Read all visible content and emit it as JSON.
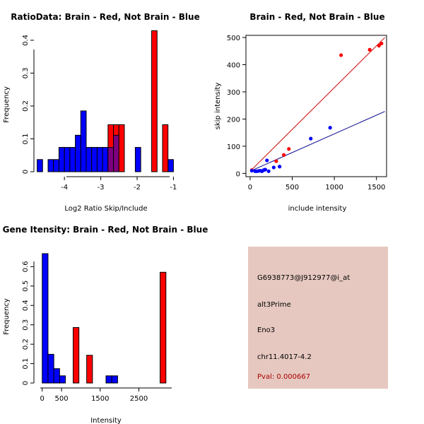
{
  "colors": {
    "red": "#ff0000",
    "blue": "#0000ff",
    "overlap": "#7f007f",
    "red_line": "#cc0000",
    "blue_line": "#00008b",
    "panel_bg": "#e6c8c0",
    "pval": "#aa0000"
  },
  "chart_data": [
    {
      "type": "bar",
      "title": "RatioData: Brain - Red, Not Brain - Blue",
      "xlabel": "Log2 Ratio Skip/Include",
      "ylabel": "Frequency",
      "xlim": [
        -4.8,
        -0.95
      ],
      "ylim": [
        0,
        0.43
      ],
      "xticks": [
        -4,
        -3,
        -2,
        -1
      ],
      "yticks": [
        0,
        0.1,
        0.2,
        0.3,
        0.4
      ],
      "series": [
        {
          "name": "Not Brain",
          "color": "blue",
          "bins": [
            {
              "x0": -4.75,
              "x1": -4.6,
              "y": 0.037
            },
            {
              "x0": -4.45,
              "x1": -4.3,
              "y": 0.037
            },
            {
              "x0": -4.3,
              "x1": -4.15,
              "y": 0.037
            },
            {
              "x0": -4.15,
              "x1": -4.0,
              "y": 0.074
            },
            {
              "x0": -4.0,
              "x1": -3.85,
              "y": 0.074
            },
            {
              "x0": -3.85,
              "x1": -3.7,
              "y": 0.074
            },
            {
              "x0": -3.7,
              "x1": -3.55,
              "y": 0.111
            },
            {
              "x0": -3.55,
              "x1": -3.4,
              "y": 0.185
            },
            {
              "x0": -3.4,
              "x1": -3.25,
              "y": 0.074
            },
            {
              "x0": -3.25,
              "x1": -3.1,
              "y": 0.074
            },
            {
              "x0": -3.1,
              "x1": -2.95,
              "y": 0.074
            },
            {
              "x0": -2.95,
              "x1": -2.8,
              "y": 0.074
            },
            {
              "x0": -2.8,
              "x1": -2.65,
              "y": 0.074
            },
            {
              "x0": -2.65,
              "x1": -2.5,
              "y": 0.111
            },
            {
              "x0": -2.05,
              "x1": -1.9,
              "y": 0.074
            },
            {
              "x0": -1.15,
              "x1": -1.0,
              "y": 0.037
            }
          ]
        },
        {
          "name": "Brain",
          "color": "red",
          "bins": [
            {
              "x0": -2.8,
              "x1": -2.65,
              "y": 0.143
            },
            {
              "x0": -2.65,
              "x1": -2.5,
              "y": 0.143
            },
            {
              "x0": -2.5,
              "x1": -2.35,
              "y": 0.143
            },
            {
              "x0": -1.6,
              "x1": -1.45,
              "y": 0.429
            },
            {
              "x0": -1.3,
              "x1": -1.15,
              "y": 0.143
            }
          ]
        }
      ]
    },
    {
      "type": "scatter",
      "title": "Brain - Red, Not Brain - Blue",
      "xlabel": "include intensity",
      "ylabel": "skip intensity",
      "xlim": [
        -50,
        1620
      ],
      "ylim": [
        -12,
        508
      ],
      "xticks": [
        0,
        500,
        1000,
        1500
      ],
      "yticks": [
        0,
        100,
        200,
        300,
        400,
        500
      ],
      "series": [
        {
          "name": "Brain",
          "color": "red",
          "points": [
            [
              20,
              12
            ],
            [
              310,
              45
            ],
            [
              400,
              68
            ],
            [
              460,
              90
            ],
            [
              1080,
              435
            ],
            [
              1420,
              455
            ],
            [
              1530,
              470
            ],
            [
              1560,
              478
            ]
          ],
          "fit_line": [
            [
              0,
              8
            ],
            [
              1600,
              500
            ]
          ]
        },
        {
          "name": "Not Brain",
          "color": "blue",
          "points": [
            [
              20,
              10
            ],
            [
              60,
              8
            ],
            [
              80,
              8
            ],
            [
              100,
              9
            ],
            [
              120,
              10
            ],
            [
              140,
              8
            ],
            [
              160,
              12
            ],
            [
              180,
              14
            ],
            [
              200,
              48
            ],
            [
              220,
              8
            ],
            [
              280,
              22
            ],
            [
              350,
              25
            ],
            [
              720,
              128
            ],
            [
              950,
              168
            ]
          ],
          "fit_line": [
            [
              0,
              8
            ],
            [
              1600,
              228
            ]
          ]
        }
      ]
    },
    {
      "type": "bar",
      "title": "Gene Itensity: Brain - Red, Not Brain - Blue",
      "xlabel": "Intensity",
      "ylabel": "Frequency",
      "xlim": [
        -50,
        3350
      ],
      "ylim": [
        0,
        0.685
      ],
      "xticks": [
        0,
        500,
        1500,
        2500
      ],
      "yticks": [
        0,
        0.1,
        0.2,
        0.3,
        0.4,
        0.5,
        0.6
      ],
      "series": [
        {
          "name": "Not Brain",
          "color": "blue",
          "bins": [
            {
              "x0": 0,
              "x1": 150,
              "y": 0.667
            },
            {
              "x0": 150,
              "x1": 300,
              "y": 0.148
            },
            {
              "x0": 300,
              "x1": 450,
              "y": 0.074
            },
            {
              "x0": 450,
              "x1": 600,
              "y": 0.037
            },
            {
              "x0": 1650,
              "x1": 1800,
              "y": 0.037
            },
            {
              "x0": 1800,
              "x1": 1950,
              "y": 0.037
            }
          ]
        },
        {
          "name": "Brain",
          "color": "red",
          "bins": [
            {
              "x0": 800,
              "x1": 950,
              "y": 0.286
            },
            {
              "x0": 1150,
              "x1": 1300,
              "y": 0.143
            },
            {
              "x0": 3050,
              "x1": 3200,
              "y": 0.571
            }
          ]
        }
      ]
    }
  ],
  "info": {
    "probe_id": "G6938773@J912977@i_at",
    "event_type": "alt3Prime",
    "gene": "Eno3",
    "location": "chr11.4017-4.2",
    "pval": "Pval: 0.000667"
  }
}
